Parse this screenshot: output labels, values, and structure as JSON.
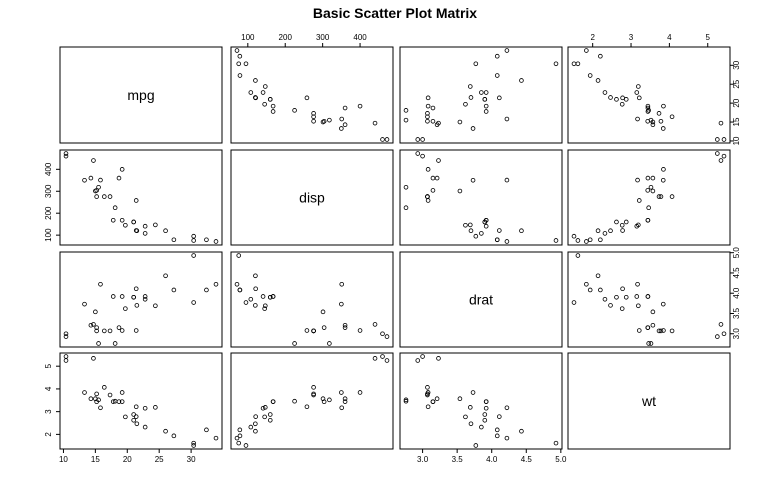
{
  "chart_data": {
    "type": "scatter",
    "subtype": "scatter-matrix",
    "title": "Basic Scatter Plot Matrix",
    "variables": [
      "mpg",
      "disp",
      "drat",
      "wt"
    ],
    "ranges": {
      "mpg": [
        10.4,
        33.9
      ],
      "disp": [
        71.1,
        472
      ],
      "drat": [
        2.76,
        4.93
      ],
      "wt": [
        1.513,
        5.424
      ]
    },
    "ticks": {
      "mpg": [
        10,
        15,
        20,
        25,
        30
      ],
      "disp": [
        100,
        200,
        300,
        400
      ],
      "drat": [
        3.0,
        3.5,
        4.0,
        4.5,
        5.0
      ],
      "wt": [
        2,
        3,
        4,
        5
      ]
    },
    "tick_labels": {
      "mpg": [
        "10",
        "15",
        "20",
        "25",
        "30"
      ],
      "disp": [
        "100",
        "200",
        "300",
        "400"
      ],
      "drat": [
        "3.0",
        "3.5",
        "4.0",
        "4.5",
        "5.0"
      ],
      "wt": [
        "2",
        "3",
        "4",
        "5"
      ]
    },
    "grid": false,
    "observations": {
      "mpg": [
        21.0,
        21.0,
        22.8,
        21.4,
        18.7,
        18.1,
        14.3,
        24.4,
        22.8,
        19.2,
        17.8,
        16.4,
        17.3,
        15.2,
        10.4,
        10.4,
        14.7,
        32.4,
        30.4,
        33.9,
        21.5,
        15.5,
        15.2,
        13.3,
        19.2,
        27.3,
        26.0,
        30.4,
        15.8,
        19.7,
        15.0,
        21.4
      ],
      "disp": [
        160,
        160,
        108,
        258,
        360,
        225,
        360,
        146.7,
        140.8,
        167.6,
        167.6,
        275.8,
        275.8,
        275.8,
        472,
        460,
        440,
        78.7,
        75.7,
        71.1,
        120.1,
        318,
        304,
        350,
        400,
        79,
        120.3,
        95.1,
        351,
        145,
        301,
        121
      ],
      "drat": [
        3.9,
        3.9,
        3.85,
        3.08,
        3.15,
        2.76,
        3.21,
        3.69,
        3.92,
        3.92,
        3.92,
        3.07,
        3.07,
        3.07,
        2.93,
        3.0,
        3.23,
        4.08,
        4.93,
        4.22,
        3.7,
        2.76,
        3.15,
        3.73,
        3.08,
        4.08,
        4.43,
        3.77,
        4.22,
        3.62,
        3.54,
        4.11
      ],
      "wt": [
        2.62,
        2.875,
        2.32,
        3.215,
        3.44,
        3.46,
        3.57,
        3.19,
        3.15,
        3.44,
        3.44,
        4.07,
        3.73,
        3.78,
        5.25,
        5.424,
        5.345,
        2.2,
        1.615,
        1.835,
        2.465,
        3.52,
        3.435,
        3.84,
        3.845,
        1.935,
        2.14,
        1.513,
        3.17,
        2.77,
        3.57,
        2.78
      ]
    }
  }
}
